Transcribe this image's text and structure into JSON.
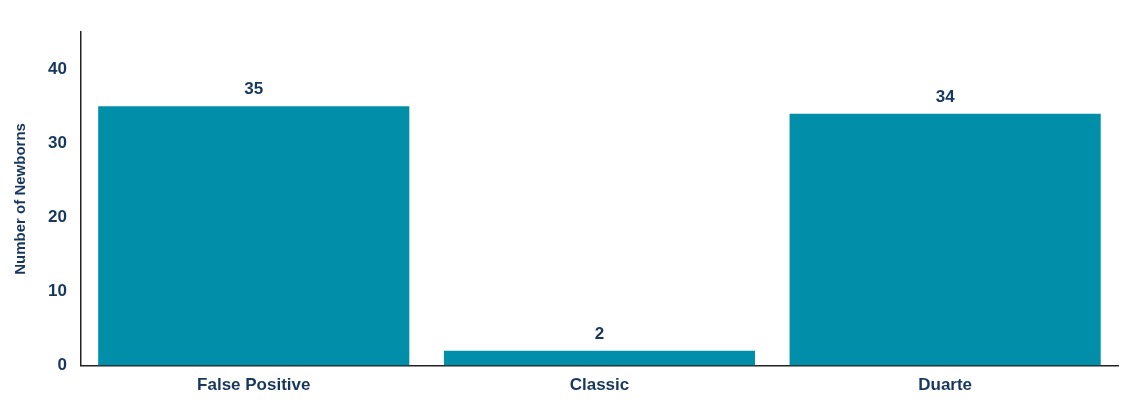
{
  "chart_data": {
    "type": "bar",
    "ylabel": "Number of Newborns",
    "categories": [
      "False Positive",
      "Classic",
      "Duarte"
    ],
    "values": [
      35,
      2,
      34
    ],
    "color": "#008ea9",
    "ylim": [
      0,
      45
    ],
    "yticks": [
      0,
      10,
      20,
      30,
      40
    ],
    "grid": false,
    "legend": false,
    "data_labels": true
  }
}
